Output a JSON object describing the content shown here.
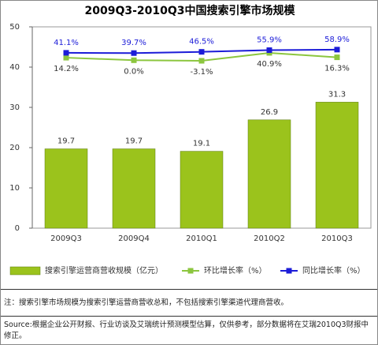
{
  "chart_data": {
    "type": "bar",
    "title": "2009Q3-2010Q3中国搜索引擎市场规模",
    "categories": [
      "2009Q3",
      "2009Q4",
      "2010Q1",
      "2010Q2",
      "2010Q3"
    ],
    "series": [
      {
        "name": "搜索引擎运营商营收规模（亿元）",
        "color": "#9bc31c",
        "values": [
          19.7,
          19.7,
          19.1,
          26.9,
          31.3
        ]
      },
      {
        "name": "环比增长率（%）",
        "color": "#8cc63f",
        "type": "line",
        "axis": "y2",
        "values": [
          14.2,
          0.0,
          -3.1,
          40.9,
          16.3
        ],
        "value_labels": [
          "14.2%",
          "0.0%",
          "-3.1%",
          "40.9%",
          "16.3%"
        ]
      },
      {
        "name": "同比增长率（%）",
        "color": "#1c1cd8",
        "type": "line",
        "axis": "y2",
        "values": [
          41.1,
          39.7,
          46.5,
          55.9,
          58.9
        ],
        "value_labels": [
          "41.1%",
          "39.7%",
          "46.5%",
          "55.9%",
          "58.9%"
        ]
      }
    ],
    "ylim": [
      0,
      50
    ],
    "yticks": [
      0,
      10,
      20,
      30,
      40,
      50
    ],
    "y2lim": [
      -930,
      185
    ],
    "notes": [
      "注：搜索引擎市场规模为搜索引擎运营商营收总和，不包括搜索引擎渠道代理商营收。",
      "Source:根据企业公开财报、行业访谈及艾瑞统计预测模型估算，仅供参考，部分数据将在艾瑞2010Q3财报中修正。"
    ]
  }
}
